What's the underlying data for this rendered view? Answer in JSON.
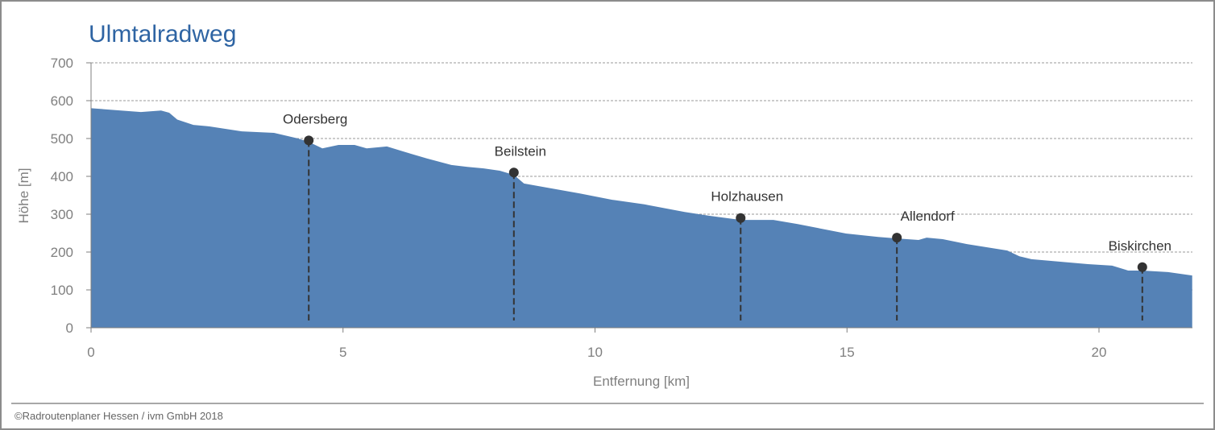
{
  "footer": "©Radroutenplaner Hessen / ivm GmbH 2018",
  "colors": {
    "title": "#2e64a3",
    "area": "#5582b6",
    "marker": "#333333",
    "axis_text": "#7f7f7f"
  },
  "chart_data": {
    "type": "area",
    "title": "Ulmtalradweg",
    "xlabel": "Entfernung [km]",
    "ylabel": "Höhe [m]",
    "xlim": [
      0,
      21.85
    ],
    "ylim": [
      0,
      700
    ],
    "grid": true,
    "xticks": [
      0,
      5,
      10,
      15,
      20
    ],
    "yticks": [
      0,
      100,
      200,
      300,
      400,
      500,
      600,
      700
    ],
    "x": [
      0,
      0.59,
      0.99,
      1.39,
      1.55,
      1.71,
      2.03,
      2.35,
      2.99,
      3.63,
      4.11,
      4.32,
      4.59,
      4.91,
      5.23,
      5.47,
      5.87,
      6.19,
      6.67,
      7.15,
      7.47,
      7.79,
      8.11,
      8.39,
      8.59,
      9.06,
      9.7,
      10.34,
      10.98,
      11.78,
      12.26,
      12.89,
      13.54,
      14.02,
      14.98,
      15.62,
      15.99,
      16.42,
      16.58,
      16.9,
      17.38,
      18.18,
      18.42,
      18.66,
      19.78,
      20.26,
      20.58,
      20.86,
      21.37,
      21.85
    ],
    "y": [
      580,
      574,
      570,
      574,
      568,
      550,
      536,
      532,
      519,
      515,
      500,
      491,
      474,
      483,
      483,
      474,
      479,
      466,
      447,
      430,
      425,
      421,
      415,
      404,
      381,
      370,
      355,
      338,
      326,
      306,
      296,
      285,
      285,
      274,
      249,
      240,
      236,
      232,
      238,
      234,
      221,
      204,
      189,
      181,
      168,
      164,
      151,
      151,
      147,
      138
    ],
    "annotations": [
      {
        "name": "Odersberg",
        "x": 4.32,
        "y": 495
      },
      {
        "name": "Beilstein",
        "x": 8.39,
        "y": 410
      },
      {
        "name": "Holzhausen",
        "x": 12.89,
        "y": 290
      },
      {
        "name": "Allendorf",
        "x": 15.99,
        "y": 238
      },
      {
        "name": "Biskirchen",
        "x": 20.86,
        "y": 160
      }
    ]
  }
}
